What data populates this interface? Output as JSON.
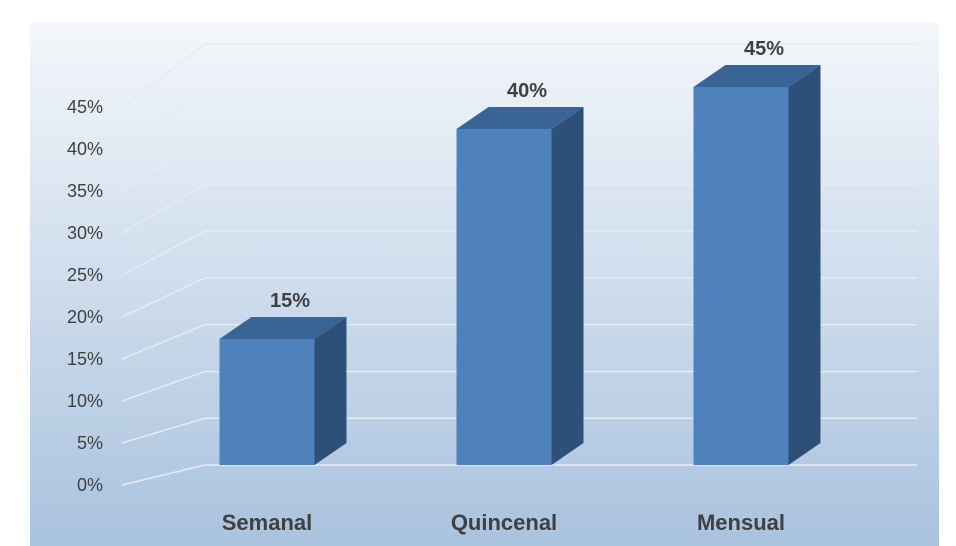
{
  "chart_data": {
    "type": "bar",
    "style": "3d-column",
    "title": "",
    "xlabel": "",
    "ylabel": "",
    "categories": [
      "Semanal",
      "Quincenal",
      "Mensual"
    ],
    "values": [
      0.15,
      0.4,
      0.45
    ],
    "data_labels": [
      "15%",
      "40%",
      "45%"
    ],
    "ylim": [
      0,
      0.45
    ],
    "y_ticks": [
      "0%",
      "5%",
      "10%",
      "15%",
      "20%",
      "25%",
      "30%",
      "35%",
      "40%",
      "45%"
    ],
    "grid": true,
    "legend": "none",
    "colors": {
      "bar_front": "#4f81bd",
      "bar_top": "#3b6496",
      "bar_side": "#2e4f77",
      "gridline": "#e6ebf2",
      "background_top": "#f4f7fb",
      "background_bottom": "#a9c2de",
      "text": "#404040"
    }
  }
}
